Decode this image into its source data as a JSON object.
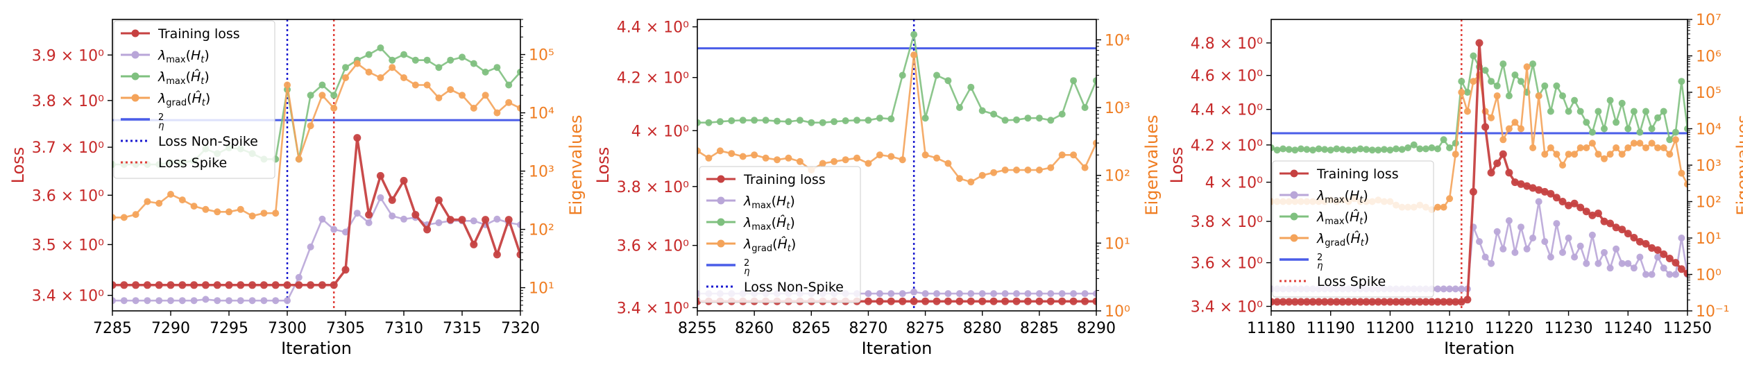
{
  "colors": {
    "loss": "#c62828",
    "eig": "#ef7d22",
    "train": "#c64141",
    "lam_max": "#b9a6d8",
    "lam_hat": "#7fc07f",
    "lam_grad": "#f4a35a",
    "two_over_eta": "#4a5de8",
    "nonspike": "#1a1ad0",
    "spike": "#e0403a"
  },
  "chart_data": [
    {
      "type": "line",
      "xlabel": "Iteration",
      "ylabel_left": "Loss",
      "ylabel_right": "Eigenvalues",
      "xlim": [
        7285,
        7320
      ],
      "xticks": [
        "7285",
        "7290",
        "7295",
        "7300",
        "7305",
        "7310",
        "7315",
        "7320"
      ],
      "y_left_log": true,
      "y_left_lim": [
        3.37,
        3.98
      ],
      "y_left_ticks": [
        3.4,
        3.5,
        3.6,
        3.7,
        3.8,
        3.9
      ],
      "y_left_tick_labels": [
        "3.4 × 10⁰",
        "3.5 × 10⁰",
        "3.6 × 10⁰",
        "3.7 × 10⁰",
        "3.8 × 10⁰",
        "3.9 × 10⁰"
      ],
      "y_right_log": true,
      "y_right_lim": [
        4,
        400000
      ],
      "y_right_ticks": [
        10,
        100,
        1000,
        10000,
        100000
      ],
      "y_right_tick_labels": [
        "10¹",
        "10²",
        "10³",
        "10⁴",
        "10⁵"
      ],
      "legend": {
        "position": "upper-left",
        "entries": [
          {
            "key": "train",
            "label": "Training loss"
          },
          {
            "key": "lam_max",
            "label": "λmax(Ht)"
          },
          {
            "key": "lam_hat",
            "label": "λmax(Ĥt)"
          },
          {
            "key": "lam_grad",
            "label": "λgrad(Ĥt)"
          },
          {
            "key": "two_over_eta",
            "label": "2/η"
          },
          {
            "key": "nonspike",
            "label": "Loss Non-Spike"
          },
          {
            "key": "spike",
            "label": "Loss Spike"
          }
        ]
      },
      "hline_two_over_eta": 7500,
      "vline_nonspike": 7300,
      "vline_spike": 7304,
      "x": [
        7285,
        7286,
        7287,
        7288,
        7289,
        7290,
        7291,
        7292,
        7293,
        7294,
        7295,
        7296,
        7297,
        7298,
        7299,
        7300,
        7301,
        7302,
        7303,
        7304,
        7305,
        7306,
        7307,
        7308,
        7309,
        7310,
        7311,
        7312,
        7313,
        7314,
        7315,
        7316,
        7317,
        7318,
        7319,
        7320
      ],
      "series": {
        "train": [
          3.42,
          3.42,
          3.42,
          3.42,
          3.42,
          3.42,
          3.42,
          3.42,
          3.42,
          3.42,
          3.42,
          3.42,
          3.42,
          3.42,
          3.42,
          3.42,
          3.42,
          3.42,
          3.42,
          3.42,
          3.45,
          3.72,
          3.56,
          3.64,
          3.59,
          3.63,
          3.56,
          3.53,
          3.59,
          3.55,
          3.55,
          3.5,
          3.55,
          3.48,
          3.55,
          3.48
        ],
        "lam_max": [
          6,
          6,
          6,
          6,
          6,
          6,
          6,
          6,
          6.3,
          6,
          6,
          6,
          6,
          6,
          6,
          6,
          15,
          50,
          150,
          100,
          90,
          190,
          130,
          350,
          170,
          150,
          160,
          120,
          130,
          140,
          140,
          140,
          120,
          150,
          130,
          120
        ],
        "lam_hat": [
          1300,
          1300,
          1300,
          1300,
          1300,
          1400,
          1400,
          1500,
          2400,
          2000,
          2500,
          2400,
          2000,
          1600,
          1600,
          25000,
          1600,
          20000,
          30000,
          20000,
          60000,
          80000,
          100000,
          130000,
          80000,
          100000,
          80000,
          80000,
          60000,
          80000,
          90000,
          70000,
          50000,
          60000,
          30000,
          50000
        ],
        "lam_grad": [
          160,
          160,
          180,
          300,
          280,
          400,
          320,
          250,
          220,
          200,
          200,
          220,
          170,
          190,
          190,
          30000,
          1600,
          6000,
          20000,
          12000,
          40000,
          70000,
          50000,
          40000,
          60000,
          40000,
          30000,
          30000,
          18000,
          25000,
          20000,
          12000,
          20000,
          10000,
          15000,
          12000
        ]
      }
    },
    {
      "type": "line",
      "xlabel": "Iteration",
      "ylabel_left": "Loss",
      "ylabel_right": "Eigenvalues",
      "xlim": [
        8255,
        8290
      ],
      "xticks": [
        "8255",
        "8260",
        "8265",
        "8270",
        "8275",
        "8280",
        "8285",
        "8290"
      ],
      "y_left_log": true,
      "y_left_lim": [
        3.39,
        4.43
      ],
      "y_left_ticks": [
        3.4,
        3.6,
        3.8,
        4.0,
        4.2,
        4.4
      ],
      "y_left_tick_labels": [
        "3.4 × 10⁰",
        "3.6 × 10⁰",
        "3.8 × 10⁰",
        "4 × 10⁰",
        "4.2 × 10⁰",
        "4.4 × 10⁰"
      ],
      "y_right_log": true,
      "y_right_lim": [
        1,
        20000
      ],
      "y_right_ticks": [
        1,
        10,
        100,
        1000,
        10000
      ],
      "y_right_tick_labels": [
        "10⁰",
        "10¹",
        "10²",
        "10³",
        "10⁴"
      ],
      "legend": {
        "position": "lower-left",
        "entries": [
          {
            "key": "train",
            "label": "Training loss"
          },
          {
            "key": "lam_max",
            "label": "λmax(Ht)"
          },
          {
            "key": "lam_hat",
            "label": "λmax(Ĥt)"
          },
          {
            "key": "lam_grad",
            "label": "λgrad(Ĥt)"
          },
          {
            "key": "two_over_eta",
            "label": "2/η"
          },
          {
            "key": "nonspike",
            "label": "Loss Non-Spike"
          }
        ]
      },
      "hline_two_over_eta": 7500,
      "vline_nonspike": 8274,
      "x": [
        8255,
        8256,
        8257,
        8258,
        8259,
        8260,
        8261,
        8262,
        8263,
        8264,
        8265,
        8266,
        8267,
        8268,
        8269,
        8270,
        8271,
        8272,
        8273,
        8274,
        8275,
        8276,
        8277,
        8278,
        8279,
        8280,
        8281,
        8282,
        8283,
        8284,
        8285,
        8286,
        8287,
        8288,
        8289,
        8290
      ],
      "series": {
        "train": [
          3.42,
          3.42,
          3.42,
          3.42,
          3.42,
          3.42,
          3.42,
          3.42,
          3.42,
          3.42,
          3.42,
          3.42,
          3.42,
          3.42,
          3.42,
          3.42,
          3.42,
          3.42,
          3.42,
          3.42,
          3.42,
          3.42,
          3.42,
          3.42,
          3.42,
          3.42,
          3.42,
          3.42,
          3.42,
          3.42,
          3.42,
          3.42,
          3.42,
          3.42,
          3.42,
          3.42
        ],
        "lam_max": [
          1.8,
          1.8,
          1.8,
          1.8,
          1.8,
          1.8,
          1.8,
          1.8,
          1.8,
          1.8,
          1.8,
          1.8,
          1.8,
          1.8,
          1.8,
          1.8,
          1.8,
          1.8,
          1.8,
          1.9,
          1.8,
          1.8,
          1.8,
          1.8,
          1.8,
          1.8,
          1.8,
          1.8,
          1.8,
          1.8,
          1.8,
          1.8,
          1.8,
          1.8,
          1.8,
          1.8
        ],
        "lam_hat": [
          600,
          600,
          620,
          640,
          650,
          650,
          650,
          630,
          620,
          650,
          600,
          600,
          620,
          640,
          650,
          650,
          700,
          680,
          3000,
          12000,
          700,
          3000,
          2500,
          1000,
          2000,
          900,
          800,
          650,
          660,
          700,
          700,
          650,
          800,
          2500,
          1000,
          2500
        ],
        "lam_grad": [
          230,
          180,
          230,
          210,
          190,
          200,
          180,
          170,
          180,
          160,
          120,
          150,
          160,
          170,
          180,
          150,
          200,
          190,
          170,
          6000,
          200,
          180,
          150,
          90,
          80,
          100,
          110,
          120,
          120,
          120,
          120,
          130,
          200,
          200,
          130,
          300
        ]
      }
    },
    {
      "type": "line",
      "xlabel": "Iteration",
      "ylabel_left": "Loss",
      "ylabel_right": "Eigenvalues",
      "xlim": [
        11180,
        11250
      ],
      "xticks": [
        "11180",
        "11190",
        "11200",
        "11210",
        "11220",
        "11230",
        "11240",
        "11250"
      ],
      "y_left_log": true,
      "y_left_lim": [
        3.38,
        4.95
      ],
      "y_left_ticks": [
        3.4,
        3.6,
        3.8,
        4.0,
        4.2,
        4.4,
        4.6,
        4.8
      ],
      "y_left_tick_labels": [
        "3.4 × 10⁰",
        "3.6 × 10⁰",
        "3.8 × 10⁰",
        "4 × 10⁰",
        "4.2 × 10⁰",
        "4.4 × 10⁰",
        "4.6 × 10⁰",
        "4.8 × 10⁰"
      ],
      "y_right_log": true,
      "y_right_lim": [
        0.1,
        10000000
      ],
      "y_right_ticks": [
        0.1,
        1,
        10,
        100,
        1000,
        10000,
        100000,
        1000000,
        10000000
      ],
      "y_right_tick_labels": [
        "10⁻¹",
        "10⁰",
        "10¹",
        "10²",
        "10³",
        "10⁴",
        "10⁵",
        "10⁶",
        "10⁷"
      ],
      "legend": {
        "position": "center-left",
        "entries": [
          {
            "key": "train",
            "label": "Training loss"
          },
          {
            "key": "lam_max",
            "label": "λmax(Ht)"
          },
          {
            "key": "lam_hat",
            "label": "λmax(Ĥt)"
          },
          {
            "key": "lam_grad",
            "label": "λgrad(Ĥt)"
          },
          {
            "key": "two_over_eta",
            "label": "2/η"
          },
          {
            "key": "spike",
            "label": "Loss Spike"
          }
        ]
      },
      "hline_two_over_eta": 7500,
      "vline_spike": 11212,
      "x": [
        11180,
        11181,
        11182,
        11183,
        11184,
        11185,
        11186,
        11187,
        11188,
        11189,
        11190,
        11191,
        11192,
        11193,
        11194,
        11195,
        11196,
        11197,
        11198,
        11199,
        11200,
        11201,
        11202,
        11203,
        11204,
        11205,
        11206,
        11207,
        11208,
        11209,
        11210,
        11211,
        11212,
        11213,
        11214,
        11215,
        11216,
        11217,
        11218,
        11219,
        11220,
        11221,
        11222,
        11223,
        11224,
        11225,
        11226,
        11227,
        11228,
        11229,
        11230,
        11231,
        11232,
        11233,
        11234,
        11235,
        11236,
        11237,
        11238,
        11239,
        11240,
        11241,
        11242,
        11243,
        11244,
        11245,
        11246,
        11247,
        11248,
        11249,
        11250
      ],
      "series": {
        "train": [
          3.42,
          3.42,
          3.42,
          3.42,
          3.42,
          3.42,
          3.42,
          3.42,
          3.42,
          3.42,
          3.42,
          3.42,
          3.42,
          3.42,
          3.42,
          3.42,
          3.42,
          3.42,
          3.42,
          3.42,
          3.42,
          3.42,
          3.42,
          3.42,
          3.42,
          3.42,
          3.42,
          3.42,
          3.42,
          3.42,
          3.42,
          3.42,
          3.42,
          3.43,
          3.95,
          4.8,
          4.3,
          4.05,
          4.1,
          4.15,
          4.05,
          4.0,
          3.99,
          3.98,
          3.97,
          3.96,
          3.95,
          3.94,
          3.92,
          3.9,
          3.88,
          3.89,
          3.87,
          3.85,
          3.83,
          3.84,
          3.8,
          3.79,
          3.77,
          3.76,
          3.74,
          3.72,
          3.7,
          3.69,
          3.67,
          3.66,
          3.64,
          3.62,
          3.6,
          3.57,
          3.55
        ],
        "lam_max": [
          0.4,
          0.4,
          0.4,
          0.4,
          0.4,
          0.4,
          0.4,
          0.4,
          0.4,
          0.4,
          0.4,
          0.4,
          0.4,
          0.4,
          0.4,
          0.4,
          0.4,
          0.4,
          0.4,
          0.4,
          0.4,
          0.4,
          0.4,
          0.4,
          0.4,
          0.4,
          0.4,
          0.4,
          0.4,
          0.4,
          0.4,
          0.4,
          0.4,
          0.4,
          20,
          8,
          3,
          2,
          15,
          5,
          30,
          4,
          20,
          5,
          10,
          100,
          8,
          3,
          25,
          4,
          10,
          3,
          6,
          2,
          12,
          2,
          4,
          1.5,
          5,
          2,
          2,
          1.5,
          3,
          1,
          1,
          3,
          1.5,
          1,
          1,
          10,
          1
        ],
        "lam_hat": [
          3000,
          2600,
          2800,
          2700,
          2600,
          2800,
          2700,
          2600,
          2800,
          2700,
          2600,
          2800,
          2700,
          2600,
          2600,
          2800,
          2700,
          2600,
          2600,
          2700,
          2600,
          2800,
          2700,
          3000,
          3600,
          2800,
          2800,
          3000,
          2800,
          5000,
          3000,
          4000,
          200000,
          100000,
          1000000,
          500000,
          400000,
          200000,
          150000,
          600000,
          80000,
          300000,
          200000,
          100000,
          600000,
          80000,
          150000,
          30000,
          150000,
          80000,
          30000,
          60000,
          30000,
          15000,
          8000,
          30000,
          10000,
          60000,
          15000,
          50000,
          10000,
          30000,
          8000,
          30000,
          10000,
          20000,
          30000,
          5000,
          8000,
          200000,
          10000
        ],
        "lam_grad": [
          100,
          100,
          100,
          100,
          100,
          100,
          100,
          100,
          100,
          100,
          110,
          100,
          110,
          100,
          120,
          100,
          100,
          100,
          110,
          100,
          100,
          80,
          70,
          70,
          70,
          80,
          70,
          60,
          70,
          70,
          120,
          2000,
          100000,
          30000,
          200000,
          300000,
          30000,
          20000,
          80000,
          5000,
          10000,
          15000,
          10000,
          500000,
          3000,
          80000,
          2000,
          3000,
          2000,
          1000,
          2000,
          2000,
          3000,
          3000,
          4000,
          2000,
          1500,
          2000,
          3000,
          2000,
          3000,
          4000,
          4000,
          3000,
          4000,
          3000,
          3000,
          2000,
          5000,
          600,
          300
        ]
      }
    }
  ]
}
